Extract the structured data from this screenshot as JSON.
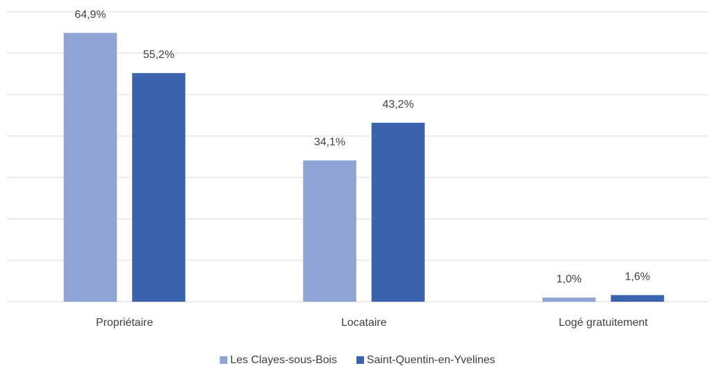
{
  "chart_data": {
    "type": "bar",
    "categories": [
      "Propriétaire",
      "Locataire",
      "Logé gratuitement"
    ],
    "series": [
      {
        "name": "Les Clayes-sous-Bois",
        "color": "#8fa3d4",
        "values": [
          64.9,
          34.1,
          1.0
        ],
        "value_labels": [
          "64,9%",
          "34,1%",
          "1,0%"
        ]
      },
      {
        "name": "Saint-Quentin-en-Yvelines",
        "color": "#3a62ad",
        "values": [
          55.2,
          43.2,
          1.6
        ],
        "value_labels": [
          "55,2%",
          "43,2%",
          "1,6%"
        ]
      }
    ],
    "ylim": [
      0,
      70
    ],
    "yticks": [
      0,
      10,
      20,
      30,
      40,
      50,
      60,
      70
    ],
    "grid": true,
    "legend": "bottom"
  }
}
